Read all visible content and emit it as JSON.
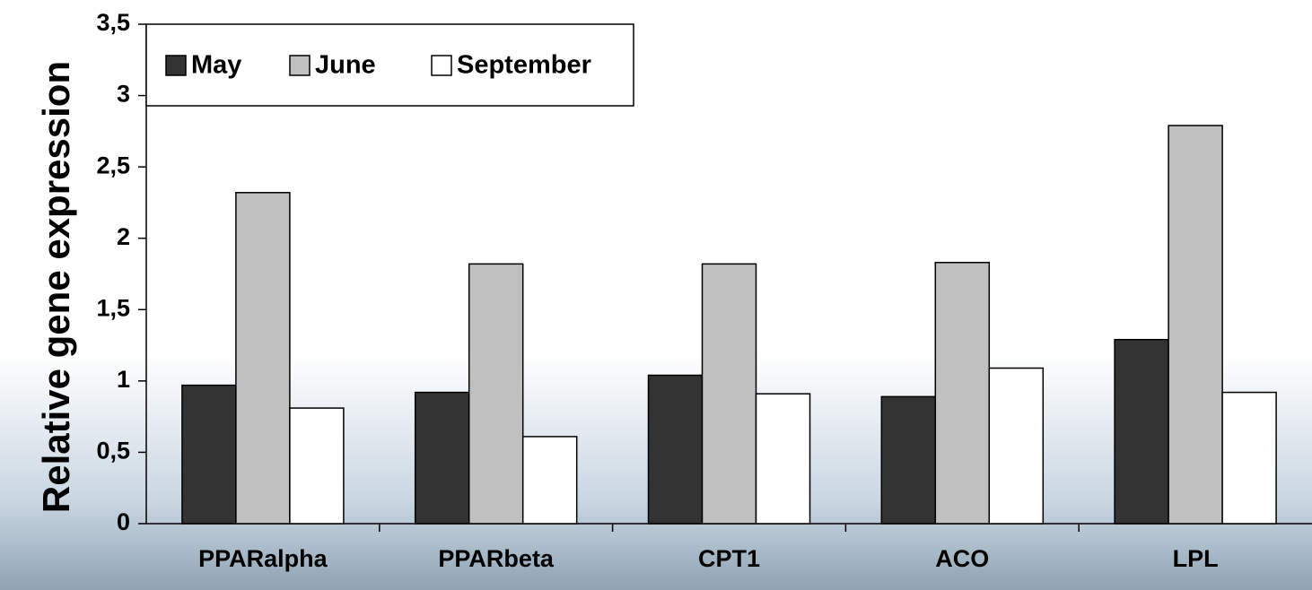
{
  "chart_data": {
    "type": "bar",
    "y_label": "Relative gene expression",
    "categories": [
      "PPARalpha",
      "PPARbeta",
      "CPT1",
      "ACO",
      "LPL"
    ],
    "series": [
      {
        "name": "May",
        "color": "#333333",
        "values": [
          0.97,
          0.92,
          1.04,
          0.89,
          1.29
        ]
      },
      {
        "name": "June",
        "color": "#c0c0c0",
        "values": [
          2.32,
          1.82,
          1.82,
          1.83,
          2.79
        ]
      },
      {
        "name": "September",
        "color": "#ffffff",
        "values": [
          0.81,
          0.61,
          0.91,
          1.09,
          0.92
        ]
      }
    ],
    "ylim": [
      0,
      3.5
    ],
    "yticks": [
      0,
      {
        "value": 0.5,
        "label": "0,5"
      },
      1,
      {
        "value": 1.5,
        "label": "1,5"
      },
      2,
      {
        "value": 2.5,
        "label": "2,5"
      },
      3,
      {
        "value": 3.5,
        "label": "3,5"
      }
    ],
    "legend": "upper left"
  }
}
